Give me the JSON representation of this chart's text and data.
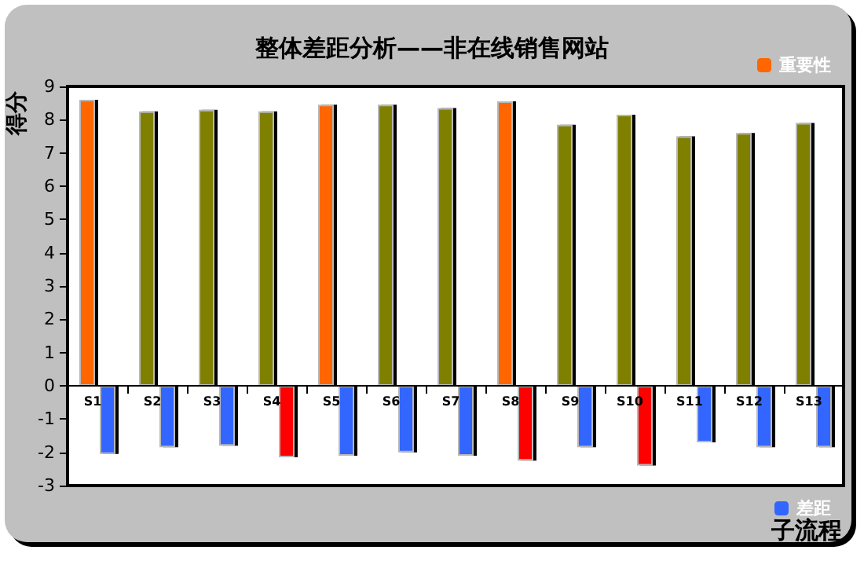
{
  "chart_data": {
    "type": "bar",
    "title": "整体差距分析——非在线销售网站",
    "xlabel": "子流程",
    "ylabel": "得分",
    "categories": [
      "S1",
      "S2",
      "S3",
      "S4",
      "S5",
      "S6",
      "S7",
      "S8",
      "S9",
      "S10",
      "S11",
      "S12",
      "S13"
    ],
    "series": [
      {
        "name": "重要性",
        "colors": [
          "#ff6600",
          "#808000",
          "#808000",
          "#808000",
          "#ff6600",
          "#808000",
          "#808000",
          "#ff6600",
          "#808000",
          "#808000",
          "#808000",
          "#808000",
          "#808000"
        ],
        "values": [
          8.6,
          8.25,
          8.3,
          8.25,
          8.45,
          8.45,
          8.35,
          8.55,
          7.85,
          8.15,
          7.5,
          7.6,
          7.9
        ]
      },
      {
        "name": "差距",
        "colors": [
          "#3366ff",
          "#3366ff",
          "#3366ff",
          "#ff0000",
          "#3366ff",
          "#3366ff",
          "#3366ff",
          "#ff0000",
          "#3366ff",
          "#ff0000",
          "#3366ff",
          "#3366ff",
          "#3366ff"
        ],
        "values": [
          -2.05,
          -1.85,
          -1.8,
          -2.15,
          -2.1,
          -2.0,
          -2.1,
          -2.25,
          -1.85,
          -2.4,
          -1.7,
          -1.85,
          -1.85
        ]
      }
    ],
    "ylim": [
      -3,
      9
    ],
    "yticks": [
      -3,
      -2,
      -1,
      0,
      1,
      2,
      3,
      4,
      5,
      6,
      7,
      8,
      9
    ],
    "grid": false,
    "legend": "right"
  }
}
